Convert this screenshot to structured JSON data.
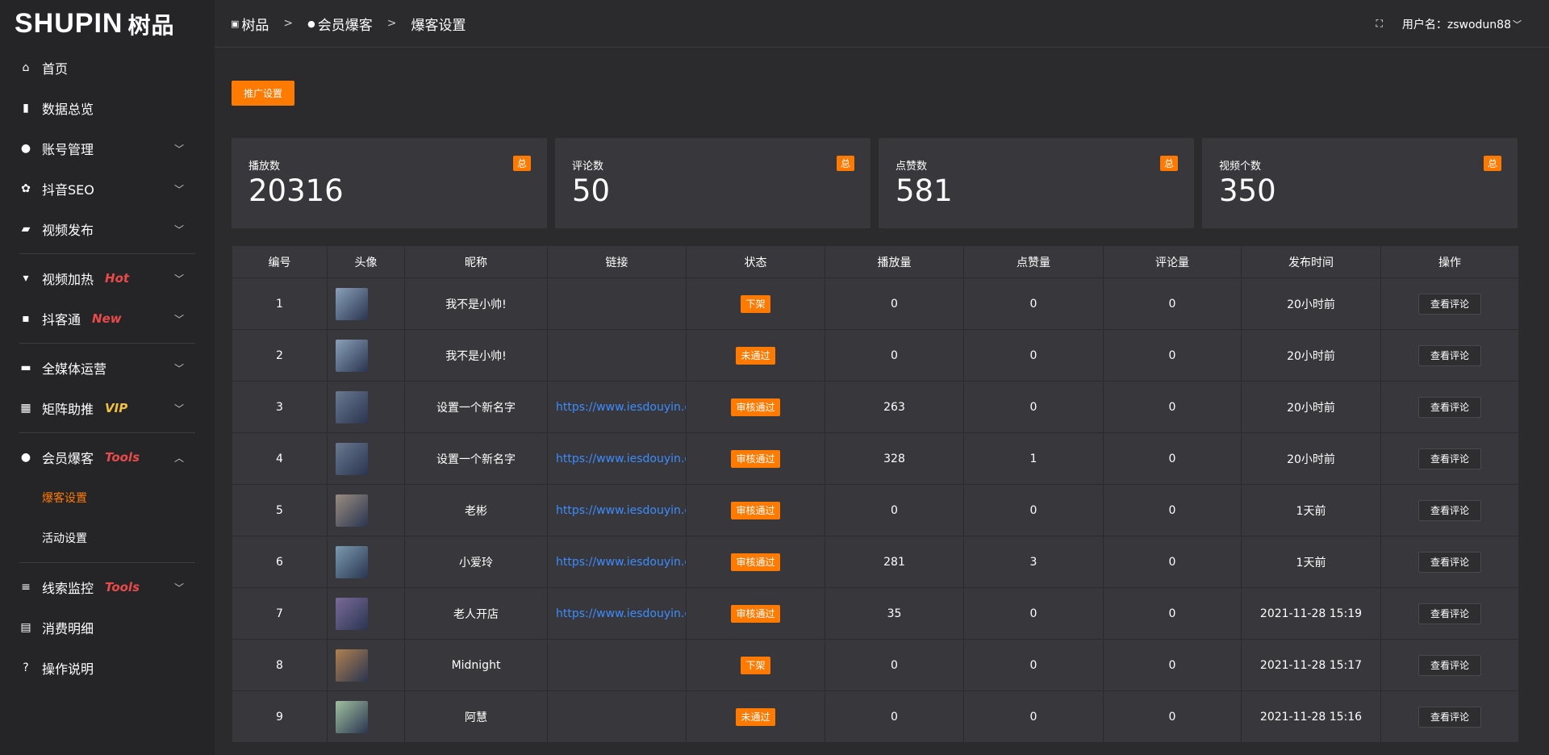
{
  "logo": {
    "text": "SHUPIN",
    "cn": "树品"
  },
  "sidebar": {
    "items": [
      {
        "icon": "home-icon",
        "glyph": "⌂",
        "label": "首页"
      },
      {
        "icon": "bar-chart-icon",
        "glyph": "▮",
        "label": "数据总览"
      },
      {
        "icon": "user-icon",
        "glyph": "●",
        "label": "账号管理",
        "chev": "﹀"
      },
      {
        "icon": "gear-icon",
        "glyph": "✿",
        "label": "抖音SEO",
        "chev": "﹀"
      },
      {
        "icon": "video-icon",
        "glyph": "▰",
        "label": "视频发布",
        "chev": "﹀"
      },
      {
        "icon": "fire-icon",
        "glyph": "▾",
        "label": "视频加热",
        "tag": "Hot",
        "tagColor": "#e84a4a",
        "chev": "﹀"
      },
      {
        "icon": "chat-icon",
        "glyph": "▪",
        "label": "抖客通",
        "tag": "New",
        "tagColor": "#e84a4a",
        "chev": "﹀"
      },
      {
        "icon": "monitor-icon",
        "glyph": "▬",
        "label": "全媒体运营",
        "chev": "﹀"
      },
      {
        "icon": "grid-icon",
        "glyph": "▦",
        "label": "矩阵助推",
        "tag": "VIP",
        "tagColor": "#f0c040",
        "chev": "﹀"
      },
      {
        "icon": "user-icon",
        "glyph": "●",
        "label": "会员爆客",
        "tag": "Tools",
        "tagColor": "#e84a4a",
        "chev": "︿"
      },
      {
        "label": "爆客设置"
      },
      {
        "label": "活动设置"
      },
      {
        "icon": "sliders-icon",
        "glyph": "≡",
        "label": "线索监控",
        "tag": "Tools",
        "tagColor": "#e84a4a",
        "chev": "﹀"
      },
      {
        "icon": "receipt-icon",
        "glyph": "▤",
        "label": "消费明细"
      },
      {
        "icon": "help-icon",
        "glyph": "?",
        "label": "操作说明"
      }
    ]
  },
  "breadcrumb": [
    "树品",
    "会员爆客",
    "爆客设置"
  ],
  "header": {
    "user_label": "用户名：zswodun88"
  },
  "promo_button": "推广设置",
  "stats": [
    {
      "label": "播放数",
      "value": "20316",
      "badge": "总"
    },
    {
      "label": "评论数",
      "value": "50",
      "badge": "总"
    },
    {
      "label": "点赞数",
      "value": "581",
      "badge": "总"
    },
    {
      "label": "视频个数",
      "value": "350",
      "badge": "总"
    }
  ],
  "table": {
    "headers": [
      "编号",
      "头像",
      "昵称",
      "链接",
      "状态",
      "播放量",
      "点赞量",
      "评论量",
      "发布时间",
      "操作"
    ],
    "rows": [
      {
        "id": "1",
        "name": "我不是小帅!",
        "link": "",
        "status": "下架",
        "plays": "0",
        "likes": "0",
        "comments": "0",
        "time": "20小时前",
        "action": "查看评论",
        "avatar": "#8aa0b8"
      },
      {
        "id": "2",
        "name": "我不是小帅!",
        "link": "",
        "status": "未通过",
        "plays": "0",
        "likes": "0",
        "comments": "0",
        "time": "20小时前",
        "action": "查看评论",
        "avatar": "#8aa0b8"
      },
      {
        "id": "3",
        "name": "设置一个新名字",
        "link": "https://www.iesdouyin.c",
        "status": "审核通过",
        "plays": "263",
        "likes": "0",
        "comments": "0",
        "time": "20小时前",
        "action": "查看评论",
        "avatar": "#6a7890"
      },
      {
        "id": "4",
        "name": "设置一个新名字",
        "link": "https://www.iesdouyin.c",
        "status": "审核通过",
        "plays": "328",
        "likes": "1",
        "comments": "0",
        "time": "20小时前",
        "action": "查看评论",
        "avatar": "#6a7890"
      },
      {
        "id": "5",
        "name": "老彬",
        "link": "https://www.iesdouyin.c",
        "status": "审核通过",
        "plays": "0",
        "likes": "0",
        "comments": "0",
        "time": "1天前",
        "action": "查看评论",
        "avatar": "#9a8c80"
      },
      {
        "id": "6",
        "name": "小爱玲",
        "link": "https://www.iesdouyin.c",
        "status": "审核通过",
        "plays": "281",
        "likes": "3",
        "comments": "0",
        "time": "1天前",
        "action": "查看评论",
        "avatar": "#7a9ab0"
      },
      {
        "id": "7",
        "name": "老人开店",
        "link": "https://www.iesdouyin.c",
        "status": "审核通过",
        "plays": "35",
        "likes": "0",
        "comments": "0",
        "time": "2021-11-28 15:19",
        "action": "查看评论",
        "avatar": "#7a6a9a"
      },
      {
        "id": "8",
        "name": "Midnight",
        "link": "",
        "status": "下架",
        "plays": "0",
        "likes": "0",
        "comments": "0",
        "time": "2021-11-28 15:17",
        "action": "查看评论",
        "avatar": "#b08050"
      },
      {
        "id": "9",
        "name": "阿慧",
        "link": "",
        "status": "未通过",
        "plays": "0",
        "likes": "0",
        "comments": "0",
        "time": "2021-11-28 15:16",
        "action": "查看评论",
        "avatar": "#a0c0a0"
      }
    ]
  },
  "colors": {
    "accent": "#ff7a00",
    "link": "#3b8cff"
  }
}
